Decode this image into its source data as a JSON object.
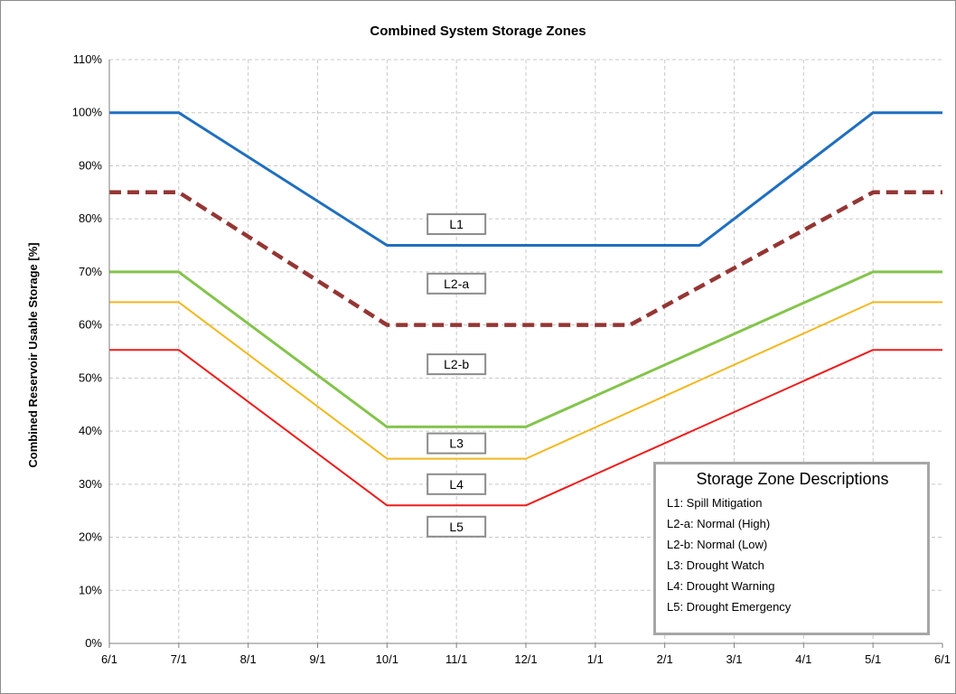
{
  "chart_data": {
    "type": "line",
    "title": "Combined System Storage Zones",
    "ylabel": "Combined Reservoir Usable Storage [%]",
    "xlabel": "",
    "x_ticks": [
      "6/1",
      "7/1",
      "8/1",
      "9/1",
      "10/1",
      "11/1",
      "12/1",
      "1/1",
      "2/1",
      "3/1",
      "4/1",
      "5/1",
      "6/1"
    ],
    "y_ticks": [
      "0%",
      "10%",
      "20%",
      "30%",
      "40%",
      "50%",
      "60%",
      "70%",
      "80%",
      "90%",
      "100%",
      "110%"
    ],
    "ylim": [
      0,
      110
    ],
    "grid": true,
    "series": [
      {
        "color": "#1f6fbf",
        "dash": false,
        "width": 3,
        "points": [
          [
            0,
            100
          ],
          [
            1,
            100
          ],
          [
            4,
            75
          ],
          [
            7,
            75
          ],
          [
            8.5,
            75
          ],
          [
            11,
            100
          ],
          [
            12,
            100
          ]
        ]
      },
      {
        "color": "#943634",
        "dash": true,
        "width": 4.5,
        "points": [
          [
            0,
            85
          ],
          [
            1,
            85
          ],
          [
            4,
            60
          ],
          [
            7,
            60
          ],
          [
            7.5,
            60
          ],
          [
            11,
            85
          ],
          [
            12,
            85
          ]
        ]
      },
      {
        "color": "#84c44c",
        "dash": false,
        "width": 3,
        "points": [
          [
            0,
            70
          ],
          [
            1,
            70
          ],
          [
            4,
            40.8
          ],
          [
            6,
            40.8
          ],
          [
            11,
            70
          ],
          [
            12,
            70
          ]
        ]
      },
      {
        "color": "#f2b81d",
        "dash": false,
        "width": 2,
        "points": [
          [
            0,
            64.3
          ],
          [
            1,
            64.3
          ],
          [
            4,
            34.8
          ],
          [
            6,
            34.8
          ],
          [
            11,
            64.3
          ],
          [
            12,
            64.3
          ]
        ]
      },
      {
        "color": "#ee1c1c",
        "dash": false,
        "width": 2,
        "points": [
          [
            0,
            55.3
          ],
          [
            1,
            55.3
          ],
          [
            4,
            26
          ],
          [
            6,
            26
          ],
          [
            11,
            55.3
          ],
          [
            12,
            55.3
          ]
        ]
      }
    ],
    "zone_labels": [
      {
        "text": "L1",
        "x": 5,
        "y": 79
      },
      {
        "text": "L2-a",
        "x": 5,
        "y": 67.8
      },
      {
        "text": "L2-b",
        "x": 5,
        "y": 52.6
      },
      {
        "text": "L3",
        "x": 5,
        "y": 37.7
      },
      {
        "text": "L4",
        "x": 5,
        "y": 30
      },
      {
        "text": "L5",
        "x": 5,
        "y": 22
      }
    ],
    "legend": {
      "title": "Storage Zone Descriptions",
      "placement": "bottom-right",
      "items": [
        "L1: Spill Mitigation",
        "L2-a: Normal (High)",
        "L2-b: Normal (Low)",
        "L3: Drought Watch",
        "L4: Drought Warning",
        "L5: Drought Emergency"
      ]
    }
  }
}
